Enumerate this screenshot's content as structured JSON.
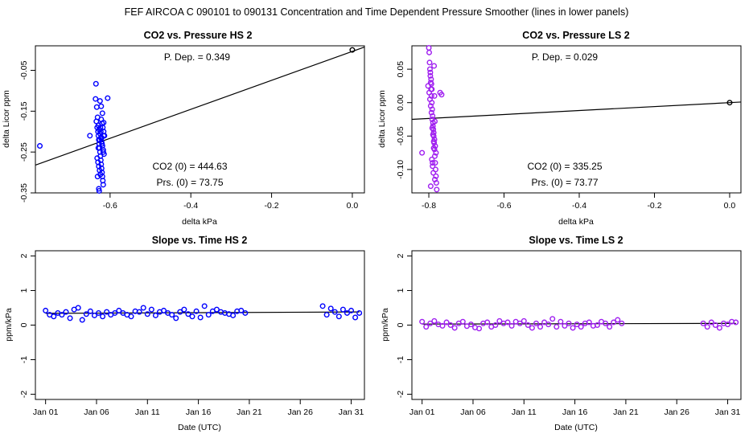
{
  "title": "FEF   AIRCOA C   090101 to 090131   Concentration and Time Dependent Pressure Smoother (lines in lower panels)",
  "chart_data": [
    {
      "id": "p1",
      "type": "scatter",
      "title": "CO2 vs. Pressure HS 2",
      "xlabel": "delta kPa",
      "ylabel": "delta Licor ppm",
      "xlim": [
        -0.785,
        0.03
      ],
      "ylim": [
        -0.35,
        0.01
      ],
      "xticks": [
        -0.6,
        -0.4,
        -0.2,
        0.0
      ],
      "xtick_labels": [
        "-0.6",
        "-0.4",
        "-0.2",
        "0.0"
      ],
      "yticks": [
        -0.35,
        -0.25,
        -0.15,
        -0.05
      ],
      "ytick_labels": [
        "-0.35",
        "-0.25",
        "-0.15",
        "-0.05"
      ],
      "point_color": "#0000ff",
      "x": [
        -0.774,
        -0.65,
        -0.635,
        -0.636,
        -0.634,
        -0.632,
        -0.63,
        -0.629,
        -0.628,
        -0.627,
        -0.626,
        -0.625,
        -0.624,
        -0.623,
        -0.622,
        -0.621,
        -0.62,
        -0.619,
        -0.618,
        -0.617,
        -0.616,
        -0.633,
        -0.631,
        -0.629,
        -0.627,
        -0.625,
        -0.623,
        -0.621,
        -0.619,
        -0.617,
        -0.615,
        -0.632,
        -0.63,
        -0.628,
        -0.626,
        -0.624,
        -0.622,
        -0.62,
        -0.618,
        -0.616,
        -0.614,
        -0.606,
        -0.631,
        -0.628,
        -0.625,
        -0.622,
        -0.619,
        -0.616,
        -0.629,
        -0.626,
        -0.623,
        -0.62,
        -0.617,
        -0.627,
        -0.624,
        -0.621
      ],
      "y": [
        -0.235,
        -0.21,
        -0.083,
        -0.12,
        -0.175,
        -0.19,
        -0.2,
        -0.21,
        -0.22,
        -0.23,
        -0.24,
        -0.25,
        -0.26,
        -0.27,
        -0.28,
        -0.29,
        -0.3,
        -0.31,
        -0.32,
        -0.33,
        -0.21,
        -0.14,
        -0.165,
        -0.185,
        -0.195,
        -0.205,
        -0.215,
        -0.225,
        -0.235,
        -0.245,
        -0.255,
        -0.265,
        -0.275,
        -0.285,
        -0.295,
        -0.305,
        -0.17,
        -0.18,
        -0.19,
        -0.2,
        -0.21,
        -0.118,
        -0.31,
        -0.34,
        -0.125,
        -0.138,
        -0.155,
        -0.178,
        -0.24,
        -0.22,
        -0.2,
        -0.23,
        -0.25,
        -0.345,
        -0.19,
        -0.215
      ],
      "fit_line": {
        "x": [
          -0.785,
          0.03
        ],
        "y": [
          -0.282,
          0.007
        ],
        "color": "#000000"
      },
      "marker_point": {
        "x": 0.0,
        "y": 0.0,
        "color": "#000000"
      },
      "annotations": {
        "dep": "P. Dep. =  0.349",
        "co2": "CO2 (0) =  444.63",
        "prs": "Prs. (0) = 73.75"
      }
    },
    {
      "id": "p2",
      "type": "scatter",
      "title": "CO2 vs. Pressure LS 2",
      "xlabel": "delta kPa",
      "ylabel": "delta Licor ppm",
      "xlim": [
        -0.845,
        0.03
      ],
      "ylim": [
        -0.135,
        0.085
      ],
      "xticks": [
        -0.8,
        -0.6,
        -0.4,
        -0.2,
        0.0
      ],
      "xtick_labels": [
        "-0.8",
        "-0.6",
        "-0.4",
        "-0.2",
        "0.0"
      ],
      "yticks": [
        -0.1,
        -0.05,
        0.0,
        0.05
      ],
      "ytick_labels": [
        "-0.10",
        "-0.05",
        "0.00",
        "0.05"
      ],
      "point_color": "#a020f0",
      "x": [
        -0.8,
        -0.799,
        -0.798,
        -0.797,
        -0.796,
        -0.795,
        -0.794,
        -0.793,
        -0.792,
        -0.791,
        -0.79,
        -0.789,
        -0.788,
        -0.787,
        -0.786,
        -0.785,
        -0.784,
        -0.783,
        -0.782,
        -0.781,
        -0.78,
        -0.779,
        -0.802,
        -0.799,
        -0.797,
        -0.795,
        -0.793,
        -0.791,
        -0.789,
        -0.787,
        -0.785,
        -0.783,
        -0.781,
        -0.796,
        -0.794,
        -0.792,
        -0.79,
        -0.788,
        -0.786,
        -0.784,
        -0.793,
        -0.791,
        -0.789,
        -0.787,
        -0.785,
        -0.818,
        -0.77,
        -0.766,
        -0.795,
        -0.79,
        -0.792,
        -0.787,
        -0.784
      ],
      "y": [
        0.082,
        0.075,
        0.06,
        0.05,
        0.04,
        0.03,
        0.02,
        0.01,
        0.0,
        -0.01,
        -0.02,
        -0.03,
        -0.04,
        -0.05,
        -0.06,
        -0.07,
        -0.08,
        -0.09,
        -0.1,
        -0.11,
        -0.12,
        -0.13,
        0.025,
        0.015,
        0.005,
        -0.005,
        -0.015,
        -0.025,
        -0.035,
        -0.045,
        -0.055,
        -0.065,
        -0.075,
        0.045,
        0.035,
        -0.085,
        -0.095,
        -0.105,
        0.055,
        -0.115,
        0.028,
        -0.038,
        -0.048,
        -0.058,
        0.01,
        -0.075,
        0.015,
        0.012,
        -0.125,
        -0.09,
        0.02,
        -0.068,
        -0.028
      ],
      "fit_line": {
        "x": [
          -0.845,
          0.03
        ],
        "y": [
          -0.025,
          0.0009
        ],
        "color": "#000000"
      },
      "marker_point": {
        "x": 0.0,
        "y": 0.0,
        "color": "#000000"
      },
      "annotations": {
        "dep": "P. Dep. =  0.029",
        "co2": "CO2 (0) =  335.25",
        "prs": "Prs. (0) = 73.77"
      }
    },
    {
      "id": "p3",
      "type": "scatter",
      "title": "Slope vs. Time HS 2",
      "xlabel": "Date (UTC)",
      "ylabel": "ppm/kPa",
      "xlim": [
        0.0,
        32.3
      ],
      "ylim": [
        -2.15,
        2.15
      ],
      "xticks": [
        1,
        6,
        11,
        16,
        21,
        26,
        31
      ],
      "xtick_labels": [
        "Jan 01",
        "Jan 06",
        "Jan 11",
        "Jan 16",
        "Jan 21",
        "Jan 26",
        "Jan 31"
      ],
      "yticks": [
        -2,
        -1,
        0,
        1,
        2
      ],
      "ytick_labels": [
        "-2",
        "-1",
        "0",
        "1",
        "2"
      ],
      "point_color": "#0000ff",
      "x": [
        1.0,
        1.4,
        1.8,
        2.2,
        2.6,
        3.0,
        3.4,
        3.8,
        4.2,
        4.6,
        5.0,
        5.4,
        5.8,
        6.2,
        6.6,
        7.0,
        7.4,
        7.8,
        8.2,
        8.6,
        9.0,
        9.4,
        9.8,
        10.2,
        10.6,
        11.0,
        11.4,
        11.8,
        12.2,
        12.6,
        13.0,
        13.4,
        13.8,
        14.2,
        14.6,
        15.0,
        15.4,
        15.8,
        16.2,
        16.6,
        17.0,
        17.4,
        17.8,
        18.2,
        18.6,
        19.0,
        19.4,
        19.8,
        20.2,
        20.6,
        28.2,
        28.6,
        29.0,
        29.4,
        29.8,
        30.2,
        30.6,
        31.0,
        31.4,
        31.8
      ],
      "y": [
        0.42,
        0.3,
        0.25,
        0.35,
        0.3,
        0.38,
        0.2,
        0.45,
        0.5,
        0.15,
        0.32,
        0.4,
        0.28,
        0.35,
        0.25,
        0.38,
        0.3,
        0.35,
        0.42,
        0.35,
        0.3,
        0.25,
        0.4,
        0.38,
        0.5,
        0.32,
        0.45,
        0.28,
        0.38,
        0.42,
        0.35,
        0.3,
        0.2,
        0.38,
        0.45,
        0.32,
        0.25,
        0.4,
        0.22,
        0.55,
        0.3,
        0.4,
        0.45,
        0.38,
        0.35,
        0.32,
        0.28,
        0.4,
        0.42,
        0.35,
        0.55,
        0.3,
        0.48,
        0.38,
        0.25,
        0.45,
        0.35,
        0.42,
        0.22,
        0.35
      ],
      "fit_line": {
        "x": [
          1.0,
          31.8
        ],
        "y": [
          0.34,
          0.38
        ],
        "color": "#000000"
      }
    },
    {
      "id": "p4",
      "type": "scatter",
      "title": "Slope vs. Time LS 2",
      "xlabel": "Date (UTC)",
      "ylabel": "ppm/kPa",
      "xlim": [
        0.0,
        32.3
      ],
      "ylim": [
        -2.15,
        2.15
      ],
      "xticks": [
        1,
        6,
        11,
        16,
        21,
        26,
        31
      ],
      "xtick_labels": [
        "Jan 01",
        "Jan 06",
        "Jan 11",
        "Jan 16",
        "Jan 21",
        "Jan 26",
        "Jan 31"
      ],
      "yticks": [
        -2,
        -1,
        0,
        1,
        2
      ],
      "ytick_labels": [
        "-2",
        "-1",
        "0",
        "1",
        "2"
      ],
      "point_color": "#a020f0",
      "x": [
        1.0,
        1.4,
        1.8,
        2.2,
        2.6,
        3.0,
        3.4,
        3.8,
        4.2,
        4.6,
        5.0,
        5.4,
        5.8,
        6.2,
        6.6,
        7.0,
        7.4,
        7.8,
        8.2,
        8.6,
        9.0,
        9.4,
        9.8,
        10.2,
        10.6,
        11.0,
        11.4,
        11.8,
        12.2,
        12.6,
        13.0,
        13.4,
        13.8,
        14.2,
        14.6,
        15.0,
        15.4,
        15.8,
        16.2,
        16.6,
        17.0,
        17.4,
        17.8,
        18.2,
        18.6,
        19.0,
        19.4,
        19.8,
        20.2,
        20.6,
        28.6,
        29.0,
        29.4,
        29.8,
        30.2,
        30.6,
        31.0,
        31.4,
        31.8
      ],
      "y": [
        0.1,
        -0.05,
        0.05,
        0.12,
        0.02,
        -0.02,
        0.08,
        0.0,
        -0.08,
        0.05,
        0.1,
        -0.03,
        0.02,
        -0.07,
        -0.1,
        0.05,
        0.08,
        -0.05,
        0.0,
        0.12,
        0.05,
        0.08,
        -0.02,
        0.1,
        0.05,
        0.12,
        0.0,
        -0.08,
        0.05,
        -0.05,
        0.08,
        0.02,
        0.18,
        -0.05,
        0.1,
        -0.02,
        0.05,
        -0.08,
        0.02,
        -0.05,
        0.05,
        0.08,
        -0.02,
        0.0,
        0.1,
        0.05,
        -0.05,
        0.08,
        0.15,
        0.05,
        0.05,
        -0.05,
        0.08,
        0.0,
        -0.08,
        0.05,
        0.02,
        0.1,
        0.08
      ],
      "fit_line": {
        "x": [
          1.0,
          31.8
        ],
        "y": [
          0.03,
          0.05
        ],
        "color": "#000000"
      }
    }
  ]
}
